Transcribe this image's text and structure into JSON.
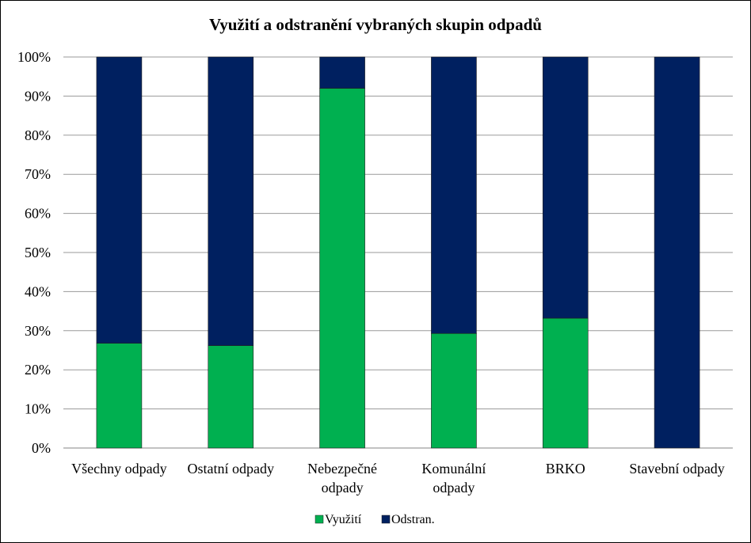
{
  "chart_data": {
    "type": "bar",
    "stacked": true,
    "title": "Využití a odstranění vybraných skupin odpadů",
    "categories": [
      [
        "Všechny odpady"
      ],
      [
        "Ostatní odpady"
      ],
      [
        "Nebezpečné",
        "odpady"
      ],
      [
        "Komunální",
        "odpady"
      ],
      [
        "BRKO"
      ],
      [
        "Stavební odpady"
      ]
    ],
    "series": [
      {
        "name": "Využití",
        "color": "#00b050",
        "values": [
          26.8,
          26.2,
          92.0,
          29.3,
          33.2,
          0.0
        ]
      },
      {
        "name": "Odstran.",
        "color": "#002060",
        "values": [
          73.2,
          73.8,
          8.0,
          70.7,
          66.8,
          100.0
        ]
      }
    ],
    "ylim": [
      0,
      100
    ],
    "yticks": [
      "0%",
      "10%",
      "20%",
      "30%",
      "40%",
      "50%",
      "60%",
      "70%",
      "80%",
      "90%",
      "100%"
    ],
    "grid": true,
    "legend": "bottom"
  }
}
